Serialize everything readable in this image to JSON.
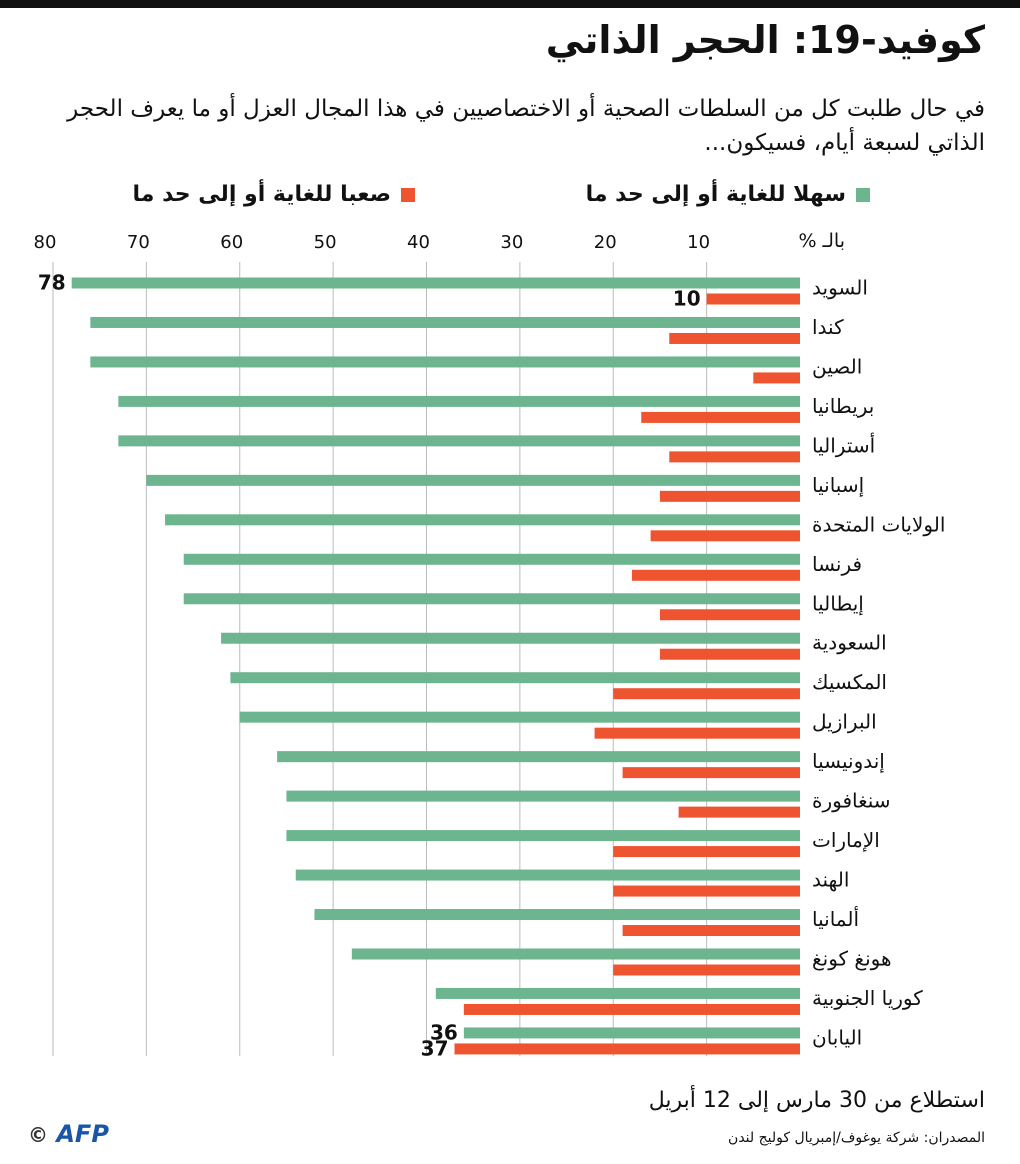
{
  "chart_data": {
    "type": "grouped-hbar",
    "title": "كوفيد-19: الحجر الذاتي",
    "subtitle": "في حال طلبت كل من السلطات الصحية أو الاختصاصيين في هذا المجال العزل أو ما يعرف الحجر الذاتي لسبعة أيام، فسيكون...",
    "axis_label": "بالـ %",
    "categories": [
      "السويد",
      "كندا",
      "الصين",
      "بريطانيا",
      "أستراليا",
      "إسبانيا",
      "الولايات المتحدة",
      "فرنسا",
      "إيطاليا",
      "السعودية",
      "المكسيك",
      "البرازيل",
      "إندونيسيا",
      "سنغافورة",
      "الإمارات",
      "الهند",
      "ألمانيا",
      "هونغ كونغ",
      "كوريا الجنوبية",
      "اليابان"
    ],
    "series": [
      {
        "name": "سهلا للغاية أو إلى حد ما",
        "color": "#6db58e",
        "values": [
          78,
          76,
          76,
          73,
          73,
          70,
          68,
          66,
          66,
          62,
          61,
          60,
          56,
          55,
          55,
          54,
          52,
          48,
          39,
          36
        ]
      },
      {
        "name": "صعبا للغاية أو إلى حد ما",
        "color": "#ef5430",
        "values": [
          10,
          14,
          5,
          17,
          14,
          15,
          16,
          18,
          15,
          15,
          20,
          22,
          19,
          13,
          20,
          20,
          19,
          20,
          36,
          37
        ]
      }
    ],
    "data_labels": [
      {
        "series": 0,
        "index": 0
      },
      {
        "series": 1,
        "index": 0
      },
      {
        "series": 0,
        "index": 19
      },
      {
        "series": 1,
        "index": 19
      }
    ],
    "xlim": [
      0,
      80
    ],
    "xticks": [
      10,
      20,
      30,
      40,
      50,
      60,
      70,
      80
    ],
    "grid": true,
    "note": "استطلاع من 30 مارس إلى 12 أبريل",
    "source": "المصدران: شركة يوغوف/إمبريال كوليج لندن",
    "credit": "AFP"
  }
}
